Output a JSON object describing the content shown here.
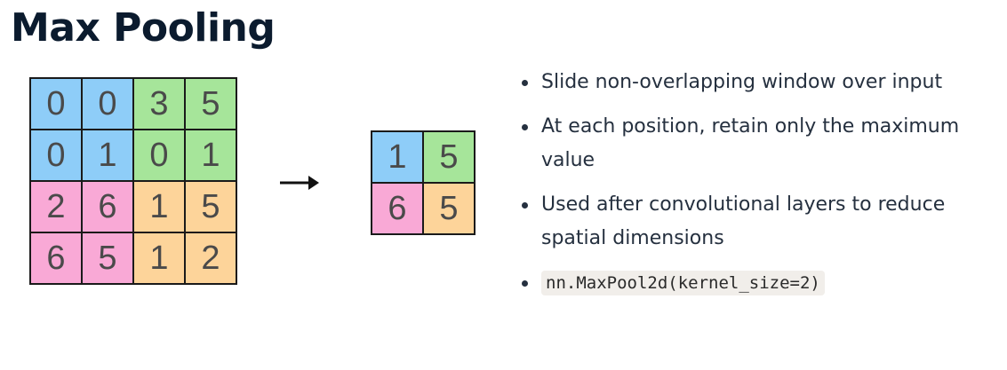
{
  "title": "Max Pooling",
  "colors": {
    "blue": "#8ecdf8",
    "green": "#a6e59a",
    "pink": "#f9a9d6",
    "orange": "#fdd49a"
  },
  "input_grid": [
    [
      {
        "v": "0",
        "c": "blue"
      },
      {
        "v": "0",
        "c": "blue"
      },
      {
        "v": "3",
        "c": "green"
      },
      {
        "v": "5",
        "c": "green"
      }
    ],
    [
      {
        "v": "0",
        "c": "blue"
      },
      {
        "v": "1",
        "c": "blue"
      },
      {
        "v": "0",
        "c": "green"
      },
      {
        "v": "1",
        "c": "green"
      }
    ],
    [
      {
        "v": "2",
        "c": "pink"
      },
      {
        "v": "6",
        "c": "pink"
      },
      {
        "v": "1",
        "c": "orange"
      },
      {
        "v": "5",
        "c": "orange"
      }
    ],
    [
      {
        "v": "6",
        "c": "pink"
      },
      {
        "v": "5",
        "c": "pink"
      },
      {
        "v": "1",
        "c": "orange"
      },
      {
        "v": "2",
        "c": "orange"
      }
    ]
  ],
  "output_grid": [
    [
      {
        "v": "1",
        "c": "blue"
      },
      {
        "v": "5",
        "c": "green"
      }
    ],
    [
      {
        "v": "6",
        "c": "pink"
      },
      {
        "v": "5",
        "c": "orange"
      }
    ]
  ],
  "arrow_icon": "arrow-right-icon",
  "bullets": [
    "Slide non-overlapping window over input",
    "At each position, retain only the maximum value",
    "Used after convolutional layers to reduce spatial dimensions"
  ],
  "code_bullet": "nn.MaxPool2d(kernel_size=2)"
}
